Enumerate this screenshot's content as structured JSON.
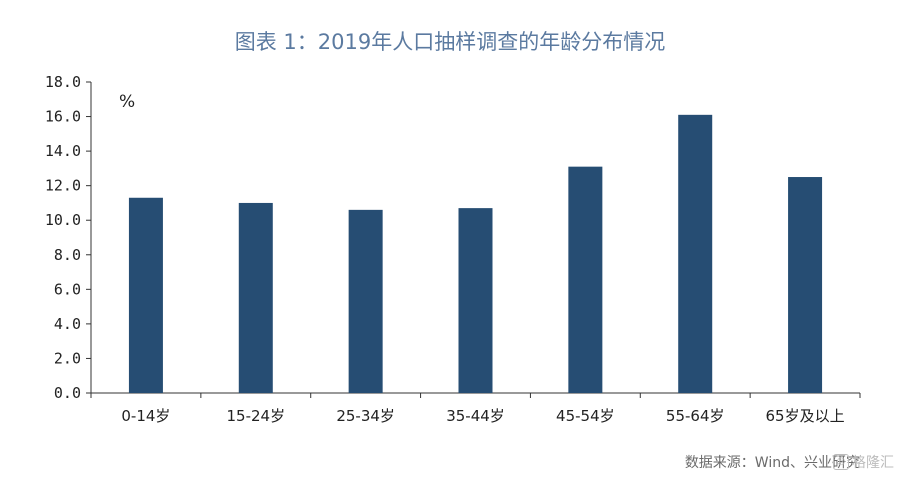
{
  "chart_data": {
    "type": "bar",
    "title": "图表 1：2019年人口抽样调查的年龄分布情况",
    "unit_label": "%",
    "categories": [
      "0-14岁",
      "15-24岁",
      "25-34岁",
      "35-44岁",
      "45-54岁",
      "55-64岁",
      "65岁及以上"
    ],
    "values": [
      11.3,
      11.0,
      10.6,
      10.7,
      13.1,
      16.1,
      12.5
    ],
    "ylim": [
      0,
      18
    ],
    "yticks": [
      "0.0",
      "2.0",
      "4.0",
      "6.0",
      "8.0",
      "10.0",
      "12.0",
      "14.0",
      "16.0",
      "18.0"
    ],
    "bar_color": "#264d73",
    "grid": false,
    "legend": "none"
  },
  "source": "数据来源：Wind、兴业研究",
  "watermark": {
    "icon": "watermark-logo-icon",
    "text": "格隆汇"
  }
}
